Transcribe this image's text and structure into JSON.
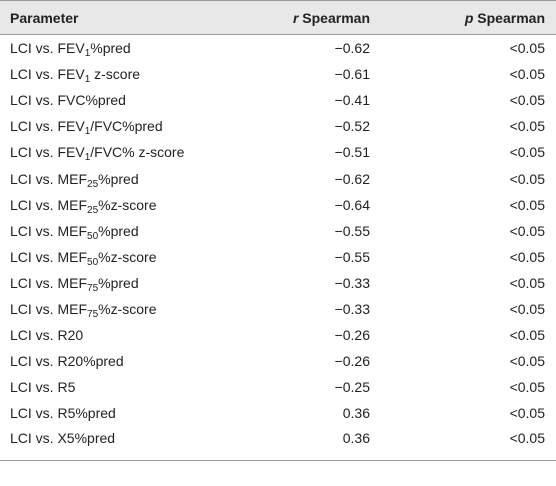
{
  "table": {
    "header": {
      "parameter": "Parameter",
      "r": {
        "symbol": "r",
        "text": "Spearman"
      },
      "p": {
        "symbol": "p",
        "text": "Spearman"
      }
    },
    "rows": [
      {
        "parameter": [
          "LCI vs. FEV",
          {
            "sub": "1"
          },
          "%pred"
        ],
        "r": "−0.62",
        "p": "<0.05"
      },
      {
        "parameter": [
          "LCI vs. FEV",
          {
            "sub": "1"
          },
          " z-score"
        ],
        "r": "−0.61",
        "p": "<0.05"
      },
      {
        "parameter": [
          "LCI vs. FVC%pred"
        ],
        "r": "−0.41",
        "p": "<0.05"
      },
      {
        "parameter": [
          "LCI vs. FEV",
          {
            "sub": "1"
          },
          "/FVC%pred"
        ],
        "r": "−0.52",
        "p": "<0.05"
      },
      {
        "parameter": [
          "LCI vs. FEV",
          {
            "sub": "1"
          },
          "/FVC% z-score"
        ],
        "r": "−0.51",
        "p": "<0.05"
      },
      {
        "parameter": [
          "LCI vs. MEF",
          {
            "sub": "25"
          },
          "%pred"
        ],
        "r": "−0.62",
        "p": "<0.05"
      },
      {
        "parameter": [
          "LCI vs. MEF",
          {
            "sub": "25"
          },
          "%z-score"
        ],
        "r": "−0.64",
        "p": "<0.05"
      },
      {
        "parameter": [
          "LCI vs. MEF",
          {
            "sub": "50"
          },
          "%pred"
        ],
        "r": "−0.55",
        "p": "<0.05"
      },
      {
        "parameter": [
          "LCI vs. MEF",
          {
            "sub": "50"
          },
          "%z-score"
        ],
        "r": "−0.55",
        "p": "<0.05"
      },
      {
        "parameter": [
          "LCI vs. MEF",
          {
            "sub": "75"
          },
          "%pred"
        ],
        "r": "−0.33",
        "p": "<0.05"
      },
      {
        "parameter": [
          "LCI vs. MEF",
          {
            "sub": "75"
          },
          "%z-score"
        ],
        "r": "−0.33",
        "p": "<0.05"
      },
      {
        "parameter": [
          "LCI vs. R20"
        ],
        "r": "−0.26",
        "p": "<0.05"
      },
      {
        "parameter": [
          "LCI vs. R20%pred"
        ],
        "r": "−0.26",
        "p": "<0.05"
      },
      {
        "parameter": [
          "LCI vs. R5"
        ],
        "r": "−0.25",
        "p": "<0.05"
      },
      {
        "parameter": [
          "LCI vs. R5%pred"
        ],
        "r": "0.36",
        "p": "<0.05"
      },
      {
        "parameter": [
          "LCI vs. X5%pred"
        ],
        "r": "0.36",
        "p": "<0.05"
      }
    ]
  }
}
